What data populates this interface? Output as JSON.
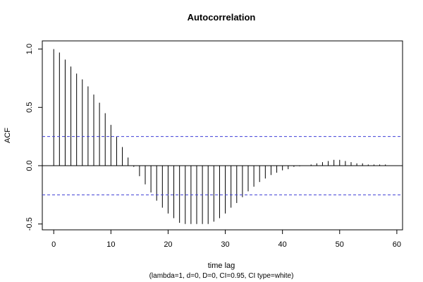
{
  "chart_data": {
    "type": "bar",
    "title": "Autocorrelation",
    "xlabel": "time lag",
    "subtitle": "(lambda=1, d=0, D=0, CI=0.95, CI type=white)",
    "ylabel": "ACF",
    "xlim": [
      -2,
      61
    ],
    "ylim": [
      -0.55,
      1.07
    ],
    "x_ticks": [
      0,
      10,
      20,
      30,
      40,
      50,
      60
    ],
    "y_ticks": [
      -0.5,
      0.0,
      0.5,
      1.0
    ],
    "y_tick_labels": [
      "-0.5",
      "0.0",
      "0.5",
      "1.0"
    ],
    "confidence_bounds": [
      0.25,
      -0.25
    ],
    "ci_color": "#3f3fd6",
    "bar_color": "#000000",
    "series": [
      {
        "lags": [
          0,
          1,
          2,
          3,
          4,
          5,
          6,
          7,
          8,
          9,
          10,
          11,
          12,
          13,
          14,
          15,
          16,
          17,
          18,
          19,
          20,
          21,
          22,
          23,
          24,
          25,
          26,
          27,
          28,
          29,
          30,
          31,
          32,
          33,
          34,
          35,
          36,
          37,
          38,
          39,
          40,
          41,
          42,
          43,
          44,
          45,
          46,
          47,
          48,
          49,
          50,
          51,
          52,
          53,
          54,
          55,
          56,
          57,
          58,
          59
        ],
        "values": [
          1.0,
          0.97,
          0.91,
          0.85,
          0.79,
          0.74,
          0.68,
          0.61,
          0.54,
          0.45,
          0.35,
          0.25,
          0.16,
          0.07,
          -0.01,
          -0.09,
          -0.16,
          -0.23,
          -0.3,
          -0.36,
          -0.41,
          -0.45,
          -0.49,
          -0.5,
          -0.5,
          -0.5,
          -0.5,
          -0.5,
          -0.48,
          -0.45,
          -0.41,
          -0.36,
          -0.32,
          -0.27,
          -0.22,
          -0.18,
          -0.14,
          -0.11,
          -0.08,
          -0.06,
          -0.04,
          -0.03,
          -0.01,
          -0.005,
          0.0,
          0.01,
          0.02,
          0.03,
          0.04,
          0.05,
          0.05,
          0.04,
          0.03,
          0.02,
          0.02,
          0.01,
          0.01,
          0.01,
          0.01,
          0.0
        ]
      }
    ]
  }
}
